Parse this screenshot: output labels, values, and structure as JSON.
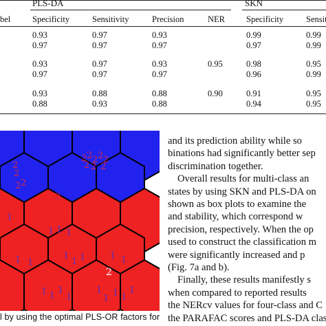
{
  "table": {
    "groups": {
      "plsda": "PLS-DA",
      "skn": "SKN"
    },
    "columns": [
      "Specificity",
      "Sensitivity",
      "Precision",
      "NER",
      "Specificity",
      "Sensiti"
    ],
    "label_fragment": "bel",
    "rows": [
      [
        "0.93",
        "0.97",
        "0.93",
        "",
        "0.99",
        "0.99"
      ],
      [
        "0.97",
        "0.97",
        "0.97",
        "",
        "0.97",
        "0.99"
      ],
      [
        "0.93",
        "0.97",
        "0.93",
        "0.95",
        "0.98",
        "0.95"
      ],
      [
        "0.97",
        "0.97",
        "0.97",
        "",
        "0.96",
        "0.99"
      ],
      [
        "0.93",
        "0.88",
        "0.88",
        "0.90",
        "0.91",
        "0.95"
      ],
      [
        "0.88",
        "0.93",
        "0.88",
        "",
        "0.94",
        "0.95"
      ]
    ]
  },
  "som_map": {
    "colors": {
      "blue": "#2222ee",
      "red": "#ee2222",
      "glyph": "#cc1a44",
      "glyph_on_red": "#5a2fc0"
    },
    "labels": [
      "2",
      "1"
    ]
  },
  "body_text": [
    "and its prediction ability while so",
    "binations had significantly better sep",
    "discrimination together.",
    "Overall results for multi-class an",
    "states by using SKN and PLS-DA on",
    "shown as box plots to examine the",
    "and stability, which correspond w",
    "precision, respectively. When the op",
    "used to construct the classification m",
    "were significantly increased and p",
    "(Fig. 7a and b).",
    "Finally, these results manifestly s",
    "when compared to reported results",
    "the NERcv values for four-class and C",
    "the PARAFAC scores and PLS-DA clas"
  ],
  "caption": "l by using the optimal PLS-OR factors for"
}
